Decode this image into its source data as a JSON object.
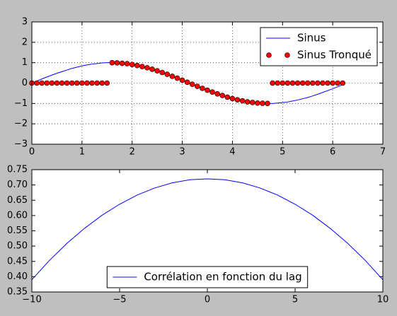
{
  "chart_data": [
    {
      "type": "line",
      "x": [
        0.0,
        0.1,
        0.2,
        0.3,
        0.4,
        0.5,
        0.6,
        0.7,
        0.8,
        0.9,
        1.0,
        1.1,
        1.2,
        1.3,
        1.4,
        1.5,
        1.6,
        1.7,
        1.8,
        1.9,
        2.0,
        2.1,
        2.2,
        2.3,
        2.4,
        2.5,
        2.6,
        2.7,
        2.8,
        2.9,
        3.0,
        3.1,
        3.2,
        3.3,
        3.4,
        3.5,
        3.6,
        3.7,
        3.8,
        3.9,
        4.0,
        4.1,
        4.2,
        4.3,
        4.4,
        4.5,
        4.6,
        4.7,
        4.8,
        4.9,
        5.0,
        5.1,
        5.2,
        5.3,
        5.4,
        5.5,
        5.6,
        5.7,
        5.8,
        5.9,
        6.0,
        6.1,
        6.2
      ],
      "series": [
        {
          "name": "Sinus",
          "color": "#0000ff",
          "line": true,
          "marker": null,
          "values": [
            0.0,
            0.1,
            0.2,
            0.3,
            0.39,
            0.48,
            0.56,
            0.64,
            0.72,
            0.78,
            0.84,
            0.89,
            0.93,
            0.96,
            0.99,
            1.0,
            1.0,
            0.99,
            0.97,
            0.95,
            0.91,
            0.86,
            0.81,
            0.75,
            0.68,
            0.6,
            0.52,
            0.43,
            0.33,
            0.24,
            0.14,
            0.04,
            -0.06,
            -0.16,
            -0.26,
            -0.35,
            -0.44,
            -0.53,
            -0.61,
            -0.69,
            -0.76,
            -0.82,
            -0.87,
            -0.92,
            -0.95,
            -0.98,
            -0.99,
            -1.0,
            -1.0,
            -0.98,
            -0.96,
            -0.93,
            -0.88,
            -0.83,
            -0.77,
            -0.71,
            -0.63,
            -0.55,
            -0.46,
            -0.37,
            -0.28,
            -0.18,
            -0.08
          ]
        },
        {
          "name": "Sinus Tronqué",
          "color": "#ff0000",
          "line": false,
          "marker": "o",
          "values": [
            0,
            0,
            0,
            0,
            0,
            0,
            0,
            0,
            0,
            0,
            0,
            0,
            0,
            0,
            0,
            0,
            1.0,
            0.99,
            0.97,
            0.95,
            0.91,
            0.86,
            0.81,
            0.75,
            0.68,
            0.6,
            0.52,
            0.43,
            0.33,
            0.24,
            0.14,
            0.04,
            -0.06,
            -0.16,
            -0.26,
            -0.35,
            -0.44,
            -0.53,
            -0.61,
            -0.69,
            -0.76,
            -0.82,
            -0.87,
            -0.92,
            -0.95,
            -0.98,
            -0.99,
            -1.0,
            0,
            0,
            0,
            0,
            0,
            0,
            0,
            0,
            0,
            0,
            0,
            0,
            0,
            0,
            0
          ]
        }
      ],
      "xlim": [
        0,
        7
      ],
      "xticks": [
        0,
        1,
        2,
        3,
        4,
        5,
        6,
        7
      ],
      "ylim": [
        -3,
        3
      ],
      "yticks": [
        {
          "value": -3,
          "label": "−3"
        },
        {
          "value": -2,
          "label": "−2"
        },
        {
          "value": -1,
          "label": "−1"
        },
        0,
        1,
        2,
        3
      ],
      "grid": true,
      "legend": "upper right"
    },
    {
      "type": "line",
      "x": [
        -10,
        -9,
        -8,
        -7,
        -6,
        -5,
        -4,
        -3,
        -2,
        -1,
        0,
        1,
        2,
        3,
        4,
        5,
        6,
        7,
        8,
        9,
        10
      ],
      "series": [
        {
          "name": "Corrélation en fonction du lag",
          "color": "#0000ff",
          "line": true,
          "marker": null,
          "values": [
            0.39,
            0.453,
            0.509,
            0.558,
            0.601,
            0.637,
            0.667,
            0.69,
            0.707,
            0.717,
            0.72,
            0.717,
            0.707,
            0.69,
            0.667,
            0.637,
            0.601,
            0.558,
            0.509,
            0.453,
            0.39
          ]
        }
      ],
      "xlim": [
        -10,
        10
      ],
      "xticks": [
        {
          "value": -10,
          "label": "−10"
        },
        {
          "value": -5,
          "label": "−5"
        },
        0,
        5,
        10
      ],
      "ylim": [
        0.35,
        0.75
      ],
      "yticks": [
        0.35,
        {
          "value": 0.4,
          "label": "0.40"
        },
        0.45,
        {
          "value": 0.5,
          "label": "0.50"
        },
        0.55,
        {
          "value": 0.6,
          "label": "0.60"
        },
        0.65,
        {
          "value": 0.7,
          "label": "0.70"
        },
        0.75
      ],
      "grid": false,
      "legend": "lower center"
    }
  ]
}
